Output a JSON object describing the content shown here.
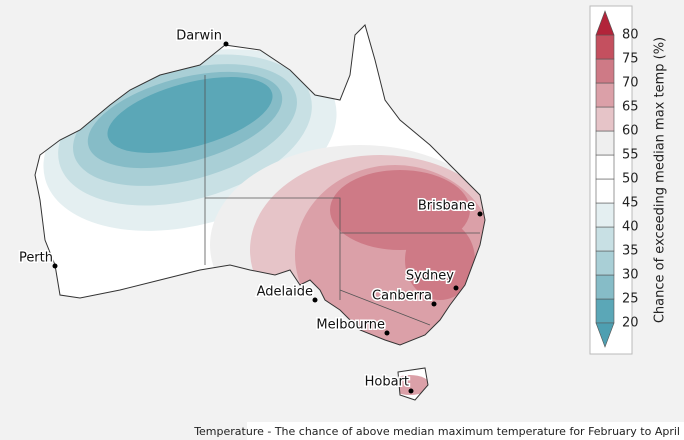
{
  "map": {
    "cities": [
      {
        "name": "Darwin"
      },
      {
        "name": "Perth"
      },
      {
        "name": "Brisbane"
      },
      {
        "name": "Adelaide"
      },
      {
        "name": "Sydney"
      },
      {
        "name": "Canberra"
      },
      {
        "name": "Melbourne"
      },
      {
        "name": "Hobart"
      }
    ]
  },
  "legend": {
    "label": "Chance of exceeding median max temp (%)",
    "ticks": [
      20,
      25,
      30,
      35,
      40,
      45,
      50,
      55,
      60,
      65,
      70,
      75,
      80
    ],
    "colors": [
      "#5ba7b7",
      "#86bcc7",
      "#a9cfd6",
      "#c8e0e4",
      "#e4eff1",
      "#ffffff",
      "#ffffff",
      "#efefef",
      "#e6c4c8",
      "#dba0a8",
      "#ce7a86",
      "#c4505f"
    ],
    "below_color": "#4e9fb1",
    "above_color": "#b2243a"
  },
  "caption": "Temperature - The chance of above median maximum temperature for February to April"
}
